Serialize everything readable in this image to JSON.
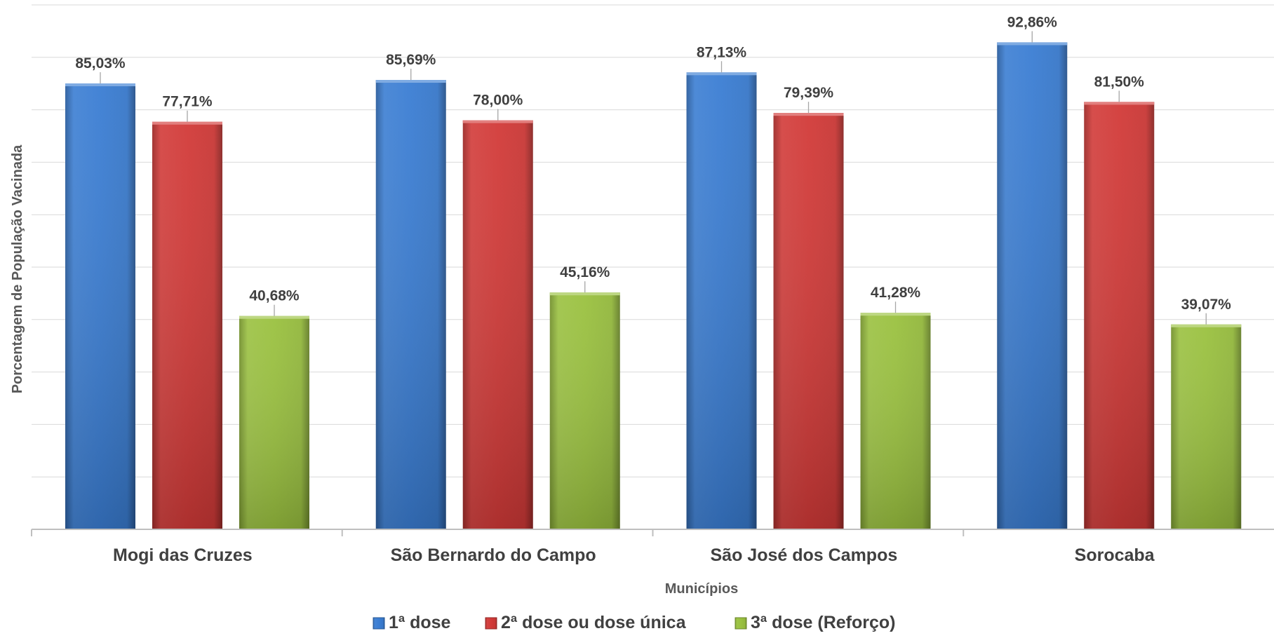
{
  "chart_data": {
    "type": "bar",
    "categories": [
      "Mogi das Cruzes",
      "São Bernardo do Campo",
      "São José dos Campos",
      "Sorocaba"
    ],
    "series": [
      {
        "name": "1ª dose",
        "color": "#3a7dd3",
        "values": [
          85.03,
          85.69,
          87.13,
          92.86
        ],
        "labels": [
          "85,03%",
          "85,69%",
          "87,13%",
          "92,86%"
        ]
      },
      {
        "name": "2ª dose ou dose única",
        "color": "#d23a38",
        "values": [
          77.71,
          78.0,
          79.39,
          81.5
        ],
        "labels": [
          "77,71%",
          "78,00%",
          "79,39%",
          "81,50%"
        ]
      },
      {
        "name": "3ª dose (Reforço)",
        "color": "#9ac13f",
        "values": [
          40.68,
          45.16,
          41.28,
          39.07
        ],
        "labels": [
          "40,68%",
          "45,16%",
          "41,28%",
          "39,07%"
        ]
      }
    ],
    "xlabel": "Municípios",
    "ylabel": "Porcentagem de População Vacinada",
    "ylim": [
      0,
      100
    ],
    "grid": true,
    "legend": "bottom-center"
  }
}
